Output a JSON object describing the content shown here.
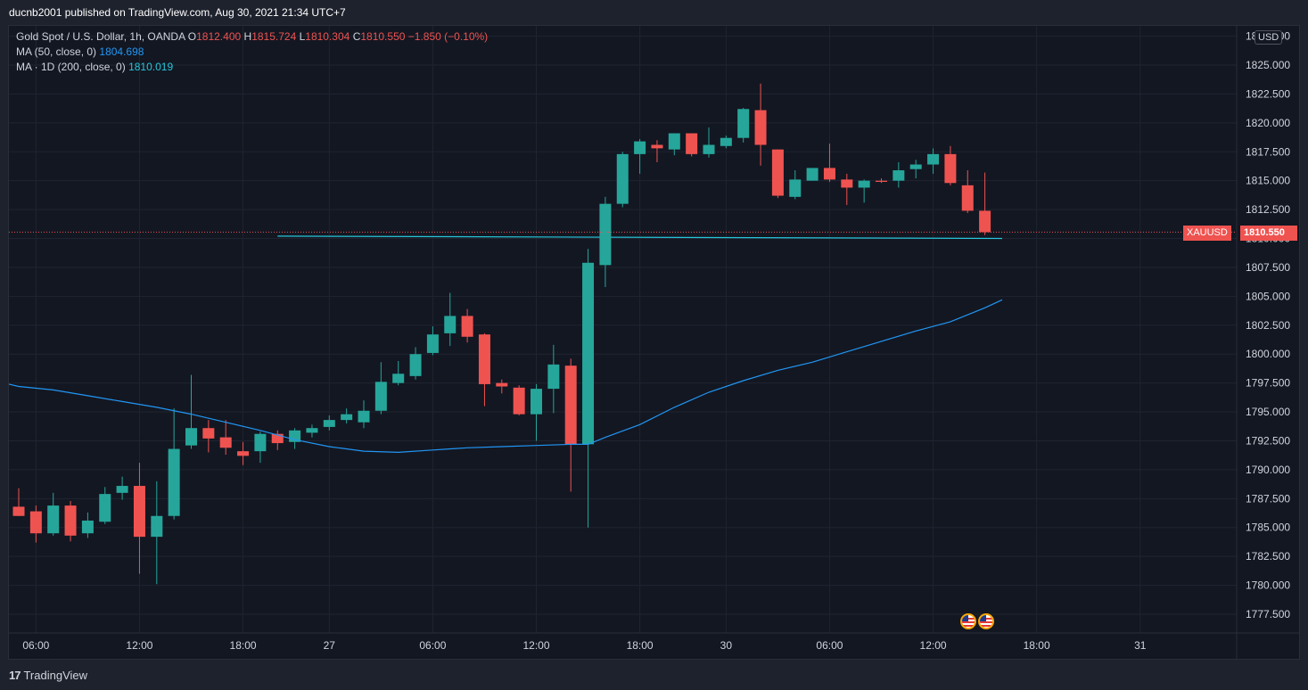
{
  "header": {
    "publisher_line": "ducnb2001 published on TradingView.com, Aug 30, 2021 21:34 UTC+7"
  },
  "legend": {
    "symbol": "Gold Spot / U.S. Dollar, 1h, OANDA",
    "open_label": "O",
    "open": "1812.400",
    "high_label": "H",
    "high": "1815.724",
    "low_label": "L",
    "low": "1810.304",
    "close_label": "C",
    "close": "1810.550",
    "change": "−1.850 (−0.10%)",
    "ma1_label": "MA (50, close, 0)",
    "ma1_value": "1804.698",
    "ma2_label": "MA · 1D (200, close, 0)",
    "ma2_value": "1810.019"
  },
  "price_axis": {
    "currency_button": "USD"
  },
  "last_price": {
    "symbol_tag": "XAUUSD",
    "value_tag": "1810.550"
  },
  "footer": {
    "brand": "TradingView"
  },
  "colors": {
    "up": "#26a69a",
    "down": "#ef5350",
    "ma50": "#2196f3",
    "ma200": "#26c6da",
    "background": "#131722",
    "grid": "#1f2430"
  },
  "event_icons": [
    "us-flag-icon",
    "us-flag-icon"
  ],
  "chart_data": {
    "type": "candlestick",
    "title": "Gold Spot / U.S. Dollar, 1h, OANDA",
    "ylim": [
      1775.5,
      1828.0
    ],
    "y_ticks": [
      "1777.500",
      "1780.000",
      "1782.500",
      "1785.000",
      "1787.500",
      "1790.000",
      "1792.500",
      "1795.000",
      "1797.500",
      "1800.000",
      "1802.500",
      "1805.000",
      "1807.500",
      "1810.000",
      "1812.500",
      "1815.000",
      "1817.500",
      "1820.000",
      "1822.500",
      "1825.000",
      "1827.500"
    ],
    "x_ticks": [
      {
        "label": "06:00",
        "index": 1
      },
      {
        "label": "12:00",
        "index": 7
      },
      {
        "label": "18:00",
        "index": 13
      },
      {
        "label": "27",
        "index": 18
      },
      {
        "label": "06:00",
        "index": 24
      },
      {
        "label": "12:00",
        "index": 30
      },
      {
        "label": "18:00",
        "index": 36
      },
      {
        "label": "30",
        "index": 41
      },
      {
        "label": "06:00",
        "index": 47
      },
      {
        "label": "12:00",
        "index": 53
      },
      {
        "label": "18:00",
        "index": 59
      },
      {
        "label": "31",
        "index": 65
      }
    ],
    "candles": [
      {
        "o": 1786.8,
        "h": 1788.4,
        "l": 1786.0,
        "c": 1786.0
      },
      {
        "o": 1786.4,
        "h": 1786.9,
        "l": 1783.7,
        "c": 1784.5
      },
      {
        "o": 1784.5,
        "h": 1788.0,
        "l": 1784.3,
        "c": 1786.9
      },
      {
        "o": 1786.9,
        "h": 1787.3,
        "l": 1783.8,
        "c": 1784.3
      },
      {
        "o": 1784.5,
        "h": 1786.3,
        "l": 1784.1,
        "c": 1785.6
      },
      {
        "o": 1785.5,
        "h": 1788.5,
        "l": 1785.3,
        "c": 1787.9
      },
      {
        "o": 1788.0,
        "h": 1789.4,
        "l": 1787.4,
        "c": 1788.6
      },
      {
        "o": 1788.6,
        "h": 1790.6,
        "l": 1781.0,
        "c": 1784.2
      },
      {
        "o": 1784.2,
        "h": 1789.0,
        "l": 1780.1,
        "c": 1786.0
      },
      {
        "o": 1786.0,
        "h": 1795.3,
        "l": 1785.7,
        "c": 1791.8
      },
      {
        "o": 1792.1,
        "h": 1798.2,
        "l": 1791.8,
        "c": 1793.6
      },
      {
        "o": 1793.6,
        "h": 1794.3,
        "l": 1791.5,
        "c": 1792.7
      },
      {
        "o": 1792.8,
        "h": 1794.3,
        "l": 1791.3,
        "c": 1791.9
      },
      {
        "o": 1791.6,
        "h": 1792.4,
        "l": 1790.4,
        "c": 1791.2
      },
      {
        "o": 1791.6,
        "h": 1793.3,
        "l": 1790.6,
        "c": 1793.1
      },
      {
        "o": 1793.1,
        "h": 1793.4,
        "l": 1791.7,
        "c": 1792.3
      },
      {
        "o": 1792.4,
        "h": 1793.6,
        "l": 1791.8,
        "c": 1793.4
      },
      {
        "o": 1793.2,
        "h": 1793.9,
        "l": 1792.8,
        "c": 1793.6
      },
      {
        "o": 1793.7,
        "h": 1794.7,
        "l": 1793.4,
        "c": 1794.3
      },
      {
        "o": 1794.3,
        "h": 1795.3,
        "l": 1794.0,
        "c": 1794.8
      },
      {
        "o": 1794.1,
        "h": 1796.0,
        "l": 1793.6,
        "c": 1795.1
      },
      {
        "o": 1795.1,
        "h": 1799.3,
        "l": 1794.8,
        "c": 1797.6
      },
      {
        "o": 1797.5,
        "h": 1799.4,
        "l": 1797.3,
        "c": 1798.3
      },
      {
        "o": 1798.1,
        "h": 1800.6,
        "l": 1797.8,
        "c": 1800.0
      },
      {
        "o": 1800.1,
        "h": 1802.4,
        "l": 1799.9,
        "c": 1801.7
      },
      {
        "o": 1801.8,
        "h": 1805.3,
        "l": 1800.7,
        "c": 1803.3
      },
      {
        "o": 1803.3,
        "h": 1803.9,
        "l": 1801.0,
        "c": 1801.5
      },
      {
        "o": 1801.7,
        "h": 1801.8,
        "l": 1795.5,
        "c": 1797.4
      },
      {
        "o": 1797.5,
        "h": 1797.8,
        "l": 1796.6,
        "c": 1797.2
      },
      {
        "o": 1797.1,
        "h": 1797.3,
        "l": 1794.7,
        "c": 1794.8
      },
      {
        "o": 1794.8,
        "h": 1797.4,
        "l": 1792.5,
        "c": 1797.0
      },
      {
        "o": 1797.0,
        "h": 1800.8,
        "l": 1794.9,
        "c": 1799.1
      },
      {
        "o": 1799.0,
        "h": 1799.6,
        "l": 1788.1,
        "c": 1792.2
      },
      {
        "o": 1792.2,
        "h": 1809.1,
        "l": 1785.0,
        "c": 1807.9
      },
      {
        "o": 1807.7,
        "h": 1813.6,
        "l": 1805.8,
        "c": 1813.0
      },
      {
        "o": 1813.0,
        "h": 1817.5,
        "l": 1812.7,
        "c": 1817.3
      },
      {
        "o": 1817.3,
        "h": 1818.6,
        "l": 1815.6,
        "c": 1818.4
      },
      {
        "o": 1818.1,
        "h": 1818.5,
        "l": 1816.6,
        "c": 1817.8
      },
      {
        "o": 1817.7,
        "h": 1819.1,
        "l": 1817.2,
        "c": 1819.1
      },
      {
        "o": 1819.1,
        "h": 1819.1,
        "l": 1817.1,
        "c": 1817.3
      },
      {
        "o": 1817.3,
        "h": 1819.6,
        "l": 1817.0,
        "c": 1818.1
      },
      {
        "o": 1818.0,
        "h": 1818.9,
        "l": 1817.8,
        "c": 1818.7
      },
      {
        "o": 1818.7,
        "h": 1821.3,
        "l": 1818.3,
        "c": 1821.2
      },
      {
        "o": 1821.1,
        "h": 1823.4,
        "l": 1816.3,
        "c": 1818.1
      },
      {
        "o": 1817.7,
        "h": 1817.7,
        "l": 1813.5,
        "c": 1813.7
      },
      {
        "o": 1813.6,
        "h": 1815.9,
        "l": 1813.4,
        "c": 1815.1
      },
      {
        "o": 1815.0,
        "h": 1816.1,
        "l": 1815.0,
        "c": 1816.1
      },
      {
        "o": 1816.1,
        "h": 1818.2,
        "l": 1814.9,
        "c": 1815.1
      },
      {
        "o": 1815.1,
        "h": 1815.6,
        "l": 1812.9,
        "c": 1814.4
      },
      {
        "o": 1814.4,
        "h": 1815.1,
        "l": 1813.1,
        "c": 1815.0
      },
      {
        "o": 1815.0,
        "h": 1815.2,
        "l": 1814.8,
        "c": 1814.9
      },
      {
        "o": 1815.0,
        "h": 1816.6,
        "l": 1814.4,
        "c": 1815.9
      },
      {
        "o": 1816.0,
        "h": 1816.8,
        "l": 1815.2,
        "c": 1816.4
      },
      {
        "o": 1816.4,
        "h": 1817.8,
        "l": 1815.6,
        "c": 1817.3
      },
      {
        "o": 1817.3,
        "h": 1818.0,
        "l": 1814.6,
        "c": 1814.8
      },
      {
        "o": 1814.6,
        "h": 1815.9,
        "l": 1812.2,
        "c": 1812.4
      },
      {
        "o": 1812.4,
        "h": 1815.7,
        "l": 1810.3,
        "c": 1810.55
      }
    ],
    "series": [
      {
        "name": "MA (50, close, 0)",
        "points": [
          [
            -1,
            1797.4
          ],
          [
            0,
            1797.2
          ],
          [
            2,
            1796.9
          ],
          [
            4,
            1796.4
          ],
          [
            6,
            1795.9
          ],
          [
            8,
            1795.4
          ],
          [
            10,
            1794.8
          ],
          [
            12,
            1794.1
          ],
          [
            14,
            1793.4
          ],
          [
            16,
            1792.6
          ],
          [
            18,
            1792.0
          ],
          [
            20,
            1791.6
          ],
          [
            22,
            1791.5
          ],
          [
            24,
            1791.7
          ],
          [
            26,
            1791.9
          ],
          [
            28,
            1792.0
          ],
          [
            30,
            1792.1
          ],
          [
            32,
            1792.2
          ],
          [
            33,
            1792.2
          ],
          [
            34,
            1792.8
          ],
          [
            36,
            1793.9
          ],
          [
            38,
            1795.4
          ],
          [
            40,
            1796.7
          ],
          [
            42,
            1797.7
          ],
          [
            44,
            1798.6
          ],
          [
            46,
            1799.3
          ],
          [
            48,
            1800.2
          ],
          [
            50,
            1801.1
          ],
          [
            52,
            1802.0
          ],
          [
            54,
            1802.8
          ],
          [
            56,
            1804.0
          ],
          [
            57,
            1804.7
          ]
        ]
      },
      {
        "name": "MA · 1D (200, close, 0)",
        "points": [
          [
            15,
            1810.2
          ],
          [
            57,
            1810.0
          ]
        ]
      }
    ]
  }
}
